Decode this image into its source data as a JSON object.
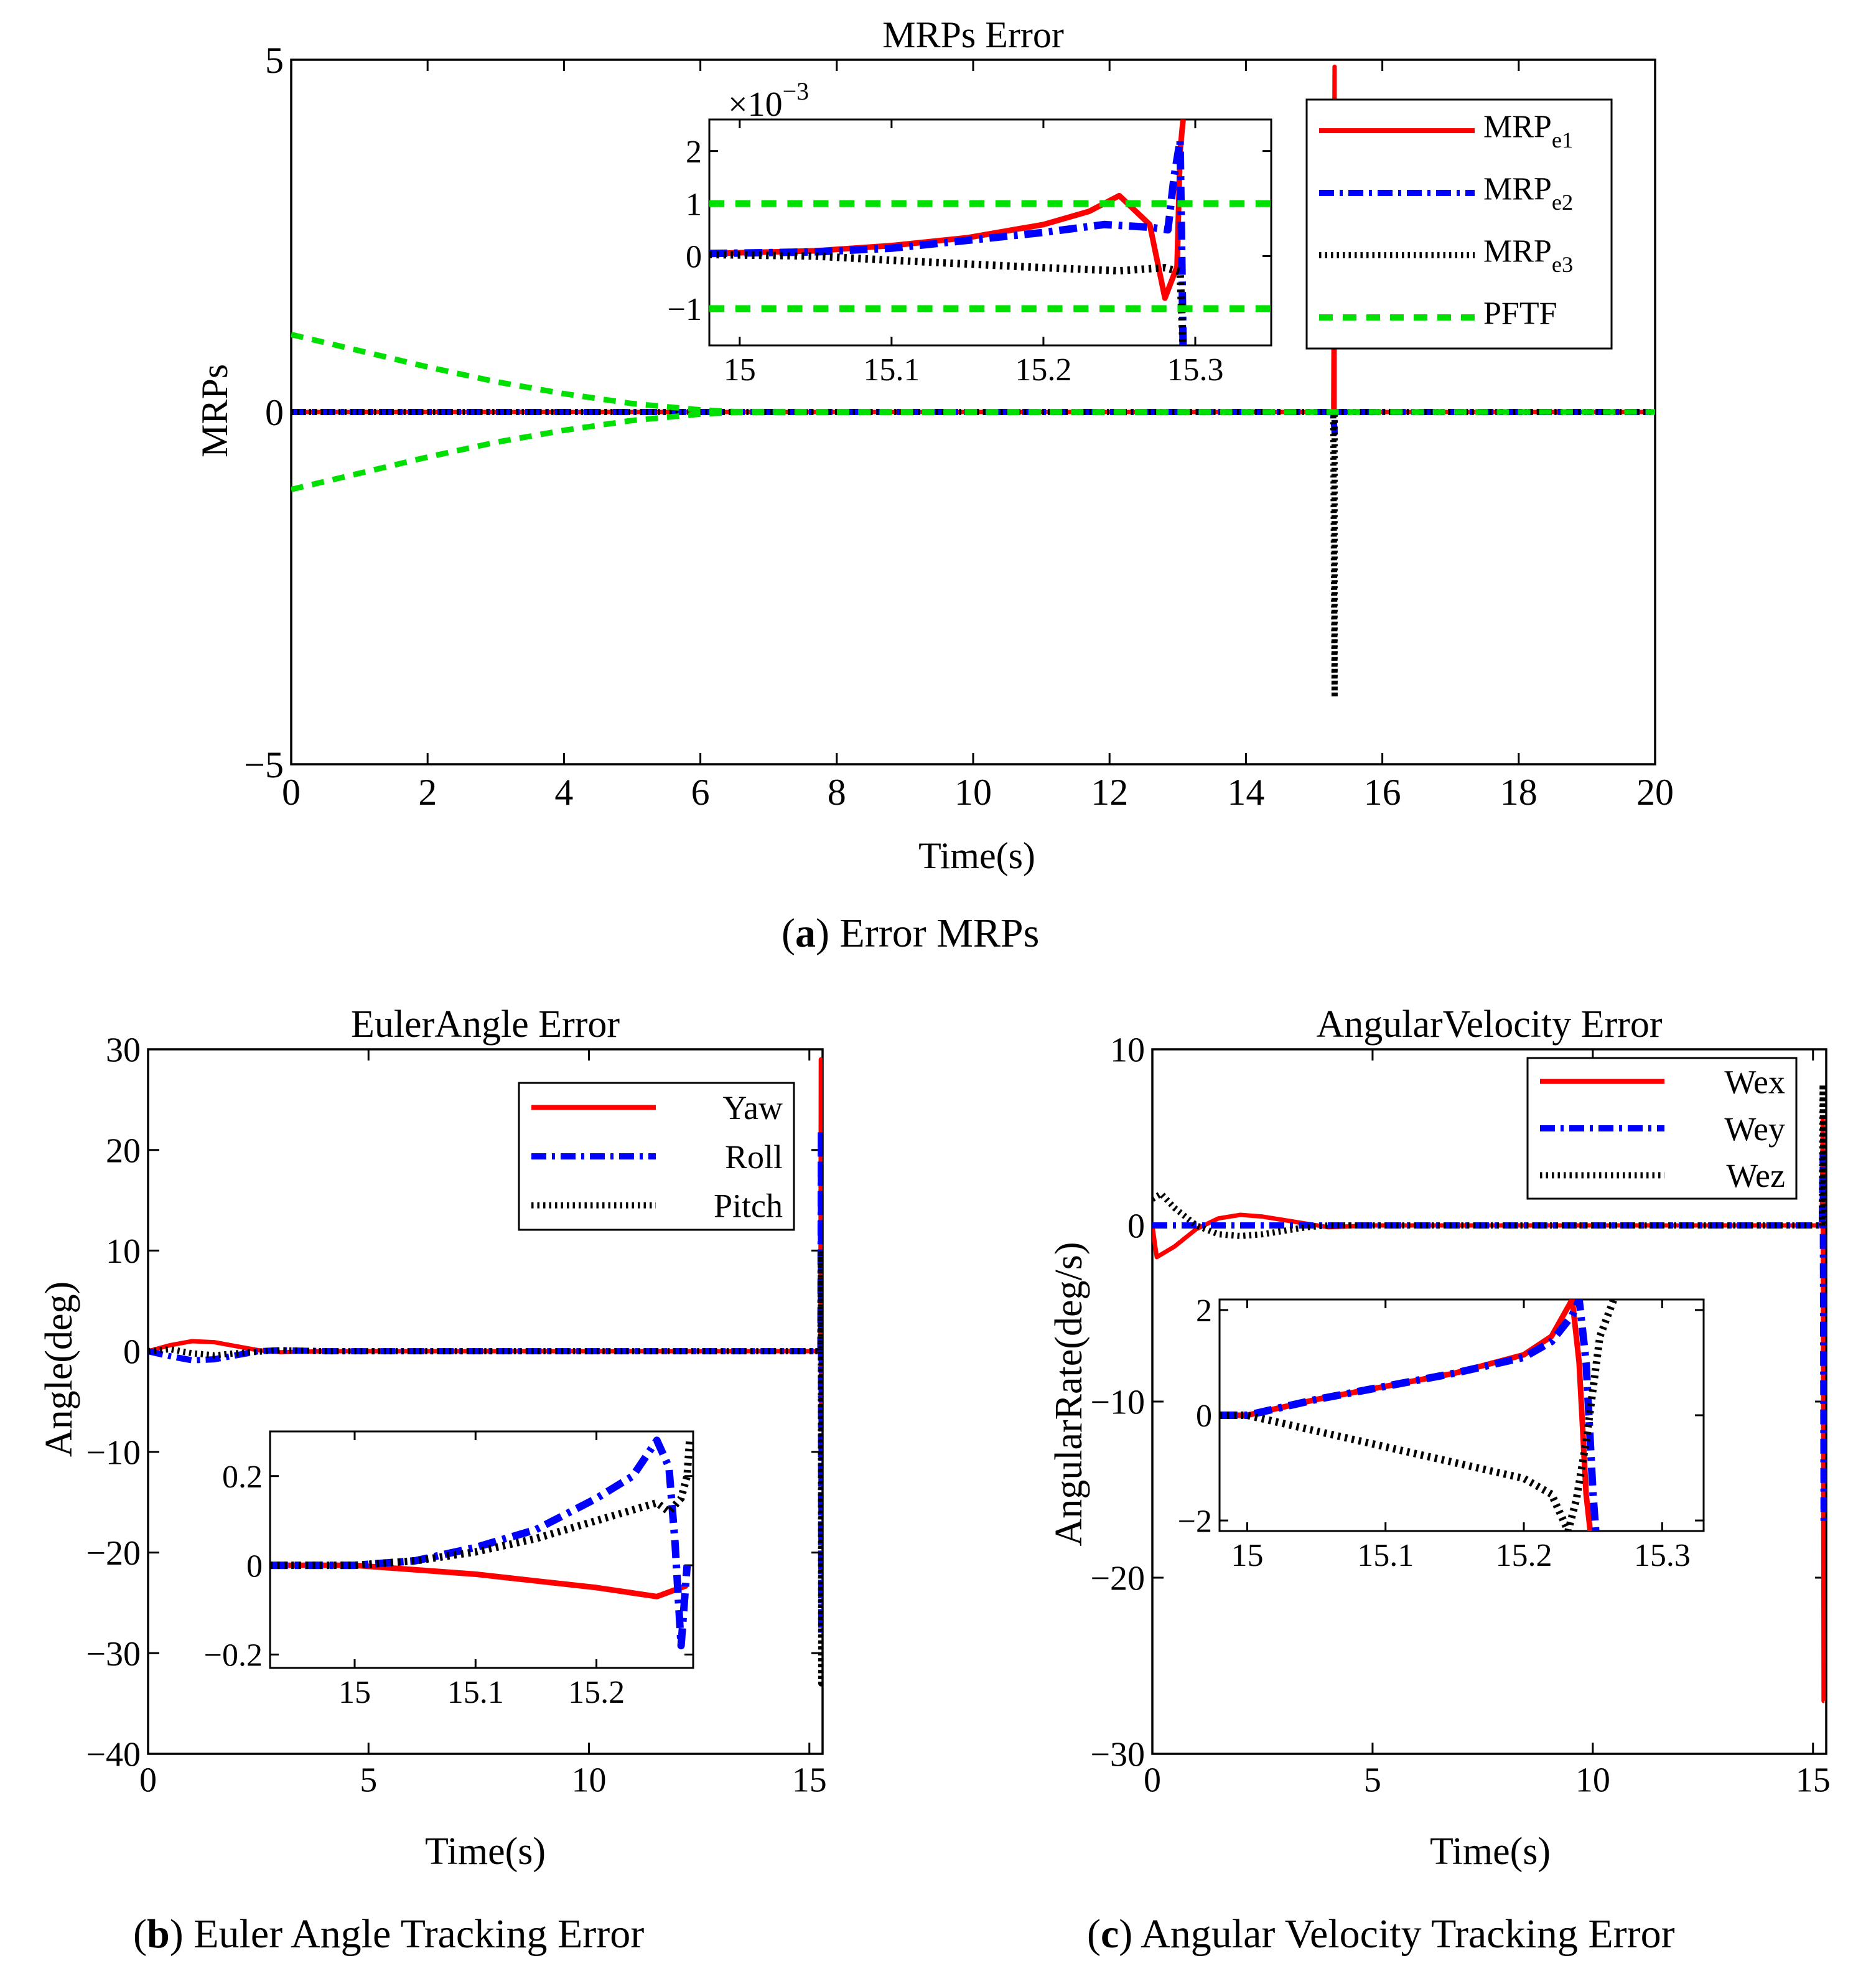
{
  "figure": {
    "caption_a_letter": "a",
    "caption_a_text": " Error MRPs",
    "caption_b_letter": "b",
    "caption_b_text": " Euler Angle Tracking Error",
    "caption_c_letter": "c",
    "caption_c_text": " Angular Velocity Tracking Error"
  },
  "chart_data": [
    {
      "id": "a",
      "type": "line",
      "title": "MRPs Error",
      "xlabel": "Time(s)",
      "ylabel": "MRPs",
      "xlim": [
        0,
        20
      ],
      "ylim": [
        -5,
        5
      ],
      "xticks": [
        0,
        2,
        4,
        6,
        8,
        10,
        12,
        14,
        16,
        18,
        20
      ],
      "yticks": [
        -5,
        0,
        5
      ],
      "ytick_labels": [
        "−5",
        "0",
        "5"
      ],
      "legend": {
        "position": "top-right",
        "labels": [
          {
            "base": "MRP",
            "sub": "e1"
          },
          {
            "base": "MRP",
            "sub": "e2"
          },
          {
            "base": "MRP",
            "sub": "e3"
          },
          {
            "base": "PFTF",
            "sub": ""
          }
        ]
      },
      "series": [
        {
          "name": "MRPe1",
          "color": "#ff0000",
          "style": "solid",
          "x": [
            0,
            15.2,
            15.28,
            15.3,
            15.3,
            15.32,
            20
          ],
          "y": [
            0,
            0,
            0,
            4.9,
            0,
            0,
            0
          ]
        },
        {
          "name": "MRPe2",
          "color": "#0000ff",
          "style": "dashdot",
          "x": [
            0,
            15.2,
            15.28,
            15.3,
            15.3,
            15.32,
            20
          ],
          "y": [
            0,
            0,
            0,
            -0.3,
            0,
            0,
            0
          ]
        },
        {
          "name": "MRPe3",
          "color": "#000000",
          "style": "dotted",
          "x": [
            0,
            15.2,
            15.28,
            15.3,
            15.3,
            15.32,
            20
          ],
          "y": [
            0,
            0,
            0,
            -4.05,
            0,
            0,
            0
          ]
        },
        {
          "name": "PFTF upper",
          "color": "#00e000",
          "style": "dashed",
          "x": [
            0,
            1,
            2,
            3,
            4,
            5,
            6,
            6.5,
            20
          ],
          "y": [
            1.1,
            0.87,
            0.64,
            0.43,
            0.26,
            0.12,
            0.03,
            0.005,
            0.001
          ]
        },
        {
          "name": "PFTF lower",
          "color": "#00e000",
          "style": "dashed",
          "x": [
            0,
            1,
            2,
            3,
            4,
            5,
            6,
            6.5,
            20
          ],
          "y": [
            -1.1,
            -0.87,
            -0.64,
            -0.43,
            -0.26,
            -0.12,
            -0.03,
            -0.005,
            -0.001
          ]
        }
      ],
      "inset": {
        "scale_label": "×10",
        "scale_exp": "−3",
        "xlim": [
          14.98,
          15.35
        ],
        "ylim": [
          -1.7,
          2.6
        ],
        "xticks": [
          15,
          15.1,
          15.2,
          15.3
        ],
        "yticks": [
          -1,
          0,
          1,
          2
        ],
        "ytick_labels": [
          "−1",
          "0",
          "1",
          "2"
        ],
        "series": [
          {
            "name": "MRPe1",
            "color": "#ff0000",
            "style": "solid",
            "x": [
              14.98,
              15.05,
              15.1,
              15.15,
              15.2,
              15.23,
              15.25,
              15.27,
              15.28,
              15.288,
              15.29,
              15.292
            ],
            "y": [
              0.05,
              0.1,
              0.2,
              0.35,
              0.6,
              0.85,
              1.15,
              0.6,
              -0.8,
              -0.2,
              2.0,
              2.6
            ]
          },
          {
            "name": "MRPe2",
            "color": "#0000ff",
            "style": "dashdot",
            "x": [
              14.98,
              15.05,
              15.1,
              15.15,
              15.2,
              15.24,
              15.27,
              15.282,
              15.286,
              15.29,
              15.292
            ],
            "y": [
              0.05,
              0.08,
              0.15,
              0.3,
              0.45,
              0.6,
              0.55,
              0.5,
              1.5,
              2.2,
              -1.7
            ]
          },
          {
            "name": "MRPe3",
            "color": "#000000",
            "style": "dotted",
            "x": [
              14.98,
              15.05,
              15.1,
              15.15,
              15.2,
              15.25,
              15.28,
              15.29,
              15.292
            ],
            "y": [
              0.03,
              0.0,
              -0.08,
              -0.15,
              -0.22,
              -0.28,
              -0.22,
              -0.3,
              -1.7
            ]
          },
          {
            "name": "PFTF upper",
            "color": "#00e000",
            "style": "dashed",
            "x": [
              14.98,
              15.35
            ],
            "y": [
              1,
              1
            ]
          },
          {
            "name": "PFTF lower",
            "color": "#00e000",
            "style": "dashed",
            "x": [
              14.98,
              15.35
            ],
            "y": [
              -1,
              -1
            ]
          }
        ]
      }
    },
    {
      "id": "b",
      "type": "line",
      "title": "EulerAngle  Error",
      "xlabel": "Time(s)",
      "ylabel": "Angle(deg)",
      "xlim": [
        0,
        15.3
      ],
      "ylim": [
        -40,
        30
      ],
      "xticks": [
        0,
        5,
        10,
        15
      ],
      "yticks": [
        -40,
        -30,
        -20,
        -10,
        0,
        10,
        20,
        30
      ],
      "ytick_labels": [
        "−40",
        "−30",
        "−20",
        "−10",
        "0",
        "10",
        "20",
        "30"
      ],
      "legend": {
        "position": "top-right",
        "labels": [
          "Yaw",
          "Roll",
          "Pitch"
        ]
      },
      "series": [
        {
          "name": "Yaw",
          "color": "#ff0000",
          "style": "solid",
          "x": [
            0,
            0.5,
            1,
            1.5,
            2,
            2.5,
            3,
            4,
            5,
            15.2,
            15.25,
            15.26,
            15.27,
            15.28
          ],
          "y": [
            0,
            0.6,
            1.0,
            0.9,
            0.5,
            0.1,
            -0.1,
            0,
            0,
            0,
            0,
            29,
            -6,
            0
          ]
        },
        {
          "name": "Roll",
          "color": "#0000ff",
          "style": "dashdot",
          "x": [
            0,
            0.5,
            1,
            1.5,
            2,
            2.5,
            3,
            4,
            5,
            15.2,
            15.25,
            15.26,
            15.27,
            15.28
          ],
          "y": [
            0,
            -0.5,
            -0.9,
            -0.8,
            -0.4,
            0,
            0.1,
            0,
            0,
            0,
            0,
            22,
            -28,
            0
          ]
        },
        {
          "name": "Pitch",
          "color": "#000000",
          "style": "dotted",
          "x": [
            0,
            0.5,
            1,
            1.5,
            2,
            3,
            4,
            5,
            15.2,
            15.25,
            15.26,
            15.27,
            15.28
          ],
          "y": [
            0,
            0.2,
            -0.2,
            -0.4,
            -0.2,
            0.1,
            0,
            0,
            0,
            0,
            10,
            -33,
            0
          ]
        }
      ],
      "inset": {
        "xlim": [
          14.93,
          15.28
        ],
        "ylim": [
          -0.23,
          0.3
        ],
        "xticks": [
          15,
          15.1,
          15.2
        ],
        "yticks": [
          -0.2,
          0,
          0.2
        ],
        "ytick_labels": [
          "−0.2",
          "0",
          "0.2"
        ],
        "series": [
          {
            "name": "Yaw",
            "color": "#ff0000",
            "style": "solid",
            "x": [
              14.93,
              15.0,
              15.05,
              15.1,
              15.15,
              15.2,
              15.25,
              15.265,
              15.275
            ],
            "y": [
              0,
              0,
              -0.01,
              -0.02,
              -0.035,
              -0.05,
              -0.07,
              -0.055,
              -0.045
            ]
          },
          {
            "name": "Roll",
            "color": "#0000ff",
            "style": "dashdot",
            "x": [
              14.93,
              15.0,
              15.05,
              15.1,
              15.15,
              15.2,
              15.23,
              15.25,
              15.26,
              15.265,
              15.27,
              15.275
            ],
            "y": [
              0,
              0,
              0.01,
              0.04,
              0.08,
              0.15,
              0.2,
              0.28,
              0.22,
              0.05,
              -0.18,
              0.0
            ]
          },
          {
            "name": "Pitch",
            "color": "#000000",
            "style": "dotted",
            "x": [
              14.93,
              15.0,
              15.05,
              15.1,
              15.15,
              15.2,
              15.25,
              15.26,
              15.27,
              15.275,
              15.277
            ],
            "y": [
              0,
              0,
              0.01,
              0.03,
              0.06,
              0.1,
              0.14,
              0.12,
              0.15,
              0.2,
              0.28
            ]
          }
        ]
      }
    },
    {
      "id": "c",
      "type": "line",
      "title": "AngularVelocity  Error",
      "xlabel": "Time(s)",
      "ylabel": "AngularRate(deg/s)",
      "xlim": [
        0,
        15.3
      ],
      "ylim": [
        -30,
        10
      ],
      "xticks": [
        0,
        5,
        10,
        15
      ],
      "yticks": [
        -30,
        -20,
        -10,
        0,
        10
      ],
      "ytick_labels": [
        "−30",
        "−20",
        "−10",
        "0",
        "10"
      ],
      "legend": {
        "position": "top-right",
        "labels": [
          "Wex",
          "Wey",
          "Wez"
        ]
      },
      "series": [
        {
          "name": "Wex",
          "color": "#ff0000",
          "style": "solid",
          "x": [
            0,
            0.1,
            0.5,
            1,
            1.5,
            2,
            2.5,
            3,
            3.5,
            4,
            5,
            15.15,
            15.2,
            15.22,
            15.24,
            15.26
          ],
          "y": [
            0,
            -1.8,
            -1.2,
            -0.2,
            0.4,
            0.6,
            0.5,
            0.3,
            0.1,
            -0.1,
            0,
            0,
            0,
            6,
            -27,
            -27
          ]
        },
        {
          "name": "Wey",
          "color": "#0000ff",
          "style": "dashdot",
          "x": [
            0,
            0.5,
            1,
            2,
            3,
            5,
            15.15,
            15.2,
            15.22,
            15.24,
            15.26
          ],
          "y": [
            0,
            0,
            0,
            0,
            0,
            0,
            0,
            0,
            4,
            -17,
            -17
          ]
        },
        {
          "name": "Wez",
          "color": "#000000",
          "style": "dotted",
          "x": [
            0,
            0.2,
            0.5,
            1,
            1.5,
            2,
            2.5,
            3,
            3.5,
            4,
            5,
            15.15,
            15.2,
            15.22,
            15.24,
            15.26
          ],
          "y": [
            1.5,
            1.8,
            1.0,
            0,
            -0.5,
            -0.6,
            -0.5,
            -0.3,
            -0.1,
            0,
            0,
            0,
            0,
            8,
            2,
            0
          ]
        }
      ],
      "inset": {
        "xlim": [
          14.98,
          15.33
        ],
        "ylim": [
          -2.2,
          2.2
        ],
        "xticks": [
          15,
          15.1,
          15.2,
          15.3
        ],
        "yticks": [
          -2,
          0,
          2
        ],
        "ytick_labels": [
          "−2",
          "0",
          "2"
        ],
        "series": [
          {
            "name": "Wex",
            "color": "#ff0000",
            "style": "solid",
            "x": [
              14.98,
              15.0,
              15.05,
              15.1,
              15.15,
              15.2,
              15.22,
              15.235,
              15.24,
              15.245,
              15.248
            ],
            "y": [
              0,
              0,
              0.3,
              0.55,
              0.8,
              1.15,
              1.5,
              2.2,
              1.0,
              -1.5,
              -2.2
            ]
          },
          {
            "name": "Wey",
            "color": "#0000ff",
            "style": "dashdot",
            "x": [
              14.98,
              15.0,
              15.05,
              15.1,
              15.15,
              15.2,
              15.22,
              15.235,
              15.24,
              15.245,
              15.25,
              15.252
            ],
            "y": [
              0,
              0,
              0.3,
              0.55,
              0.8,
              1.1,
              1.4,
              1.9,
              2.2,
              1.0,
              -1.5,
              -2.2
            ]
          },
          {
            "name": "Wez",
            "color": "#000000",
            "style": "dotted",
            "x": [
              14.98,
              15.0,
              15.05,
              15.1,
              15.15,
              15.2,
              15.22,
              15.232,
              15.238,
              15.245,
              15.255,
              15.265
            ],
            "y": [
              0,
              0,
              -0.3,
              -0.6,
              -0.9,
              -1.2,
              -1.5,
              -2.2,
              -1.6,
              -0.5,
              1.5,
              2.2
            ]
          }
        ]
      }
    }
  ]
}
